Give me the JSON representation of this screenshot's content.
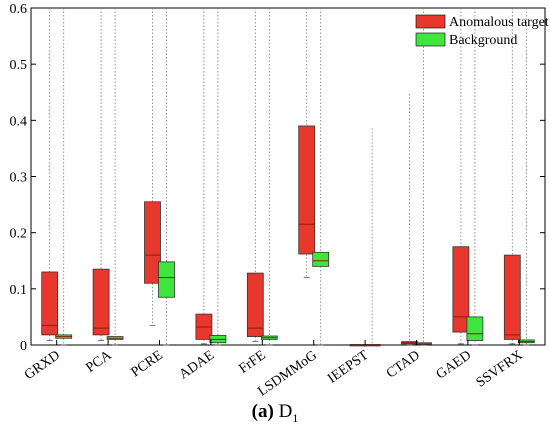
{
  "chart_data": {
    "type": "box",
    "ylim": [
      0,
      0.6
    ],
    "yticks": [
      0,
      0.1,
      0.2,
      0.3,
      0.4,
      0.5,
      0.6
    ],
    "ytick_labels": [
      "0",
      "0.1",
      "0.2",
      "0.3",
      "0.4",
      "0.5",
      "0.6"
    ],
    "legend_placement": "top-right",
    "categories": [
      "GRXD",
      "PCA",
      "PCRE",
      "ADAE",
      "FrFE",
      "LSDMMoG",
      "IEEPST",
      "CTAD",
      "GAED",
      "SSVFRX"
    ],
    "series": [
      {
        "name": "Anomalous target",
        "color": "#e8382e",
        "boxes": [
          {
            "whisker_low": 0.008,
            "q1": 0.018,
            "median": 0.035,
            "q3": 0.13,
            "whisker_high": 0.6
          },
          {
            "whisker_low": 0.008,
            "q1": 0.018,
            "median": 0.03,
            "q3": 0.135,
            "whisker_high": 0.6
          },
          {
            "whisker_low": 0.035,
            "q1": 0.11,
            "median": 0.16,
            "q3": 0.255,
            "whisker_high": 0.6
          },
          {
            "whisker_low": 0.002,
            "q1": 0.01,
            "median": 0.032,
            "q3": 0.055,
            "whisker_high": 0.6
          },
          {
            "whisker_low": 0.006,
            "q1": 0.015,
            "median": 0.03,
            "q3": 0.128,
            "whisker_high": 0.6
          },
          {
            "whisker_low": 0.12,
            "q1": 0.162,
            "median": 0.215,
            "q3": 0.39,
            "whisker_high": 0.6
          },
          {
            "whisker_low": 0.0,
            "q1": 0.0,
            "median": 0.0,
            "q3": 0.001,
            "whisker_high": 0.001
          },
          {
            "whisker_low": 0.0,
            "q1": 0.002,
            "median": 0.004,
            "q3": 0.006,
            "whisker_high": 0.447
          },
          {
            "whisker_low": 0.002,
            "q1": 0.023,
            "median": 0.05,
            "q3": 0.175,
            "whisker_high": 0.6
          },
          {
            "whisker_low": 0.002,
            "q1": 0.01,
            "median": 0.018,
            "q3": 0.16,
            "whisker_high": 0.6
          }
        ]
      },
      {
        "name": "Background",
        "color": "#3ee63e",
        "boxes": [
          {
            "whisker_low": 0.0,
            "q1": 0.012,
            "median": 0.015,
            "q3": 0.018,
            "whisker_high": 0.6
          },
          {
            "whisker_low": 0.0,
            "q1": 0.01,
            "median": 0.012,
            "q3": 0.015,
            "whisker_high": 0.6
          },
          {
            "whisker_low": 0.0,
            "q1": 0.085,
            "median": 0.12,
            "q3": 0.148,
            "whisker_high": 0.6
          },
          {
            "whisker_low": 0.0,
            "q1": 0.004,
            "median": 0.01,
            "q3": 0.017,
            "whisker_high": 0.6
          },
          {
            "whisker_low": 0.0,
            "q1": 0.01,
            "median": 0.013,
            "q3": 0.016,
            "whisker_high": 0.6
          },
          {
            "whisker_low": 0.0,
            "q1": 0.14,
            "median": 0.15,
            "q3": 0.165,
            "whisker_high": 0.6
          },
          {
            "whisker_low": 0.0,
            "q1": 0.0,
            "median": 0.0,
            "q3": 0.001,
            "whisker_high": 0.386
          },
          {
            "whisker_low": 0.0,
            "q1": 0.001,
            "median": 0.002,
            "q3": 0.004,
            "whisker_high": 0.6
          },
          {
            "whisker_low": 0.0,
            "q1": 0.008,
            "median": 0.02,
            "q3": 0.05,
            "whisker_high": 0.6
          },
          {
            "whisker_low": 0.0,
            "q1": 0.004,
            "median": 0.006,
            "q3": 0.009,
            "whisker_high": 0.6
          }
        ]
      }
    ]
  },
  "caption": {
    "label": "(a)",
    "text": "D",
    "subscript": "1"
  }
}
